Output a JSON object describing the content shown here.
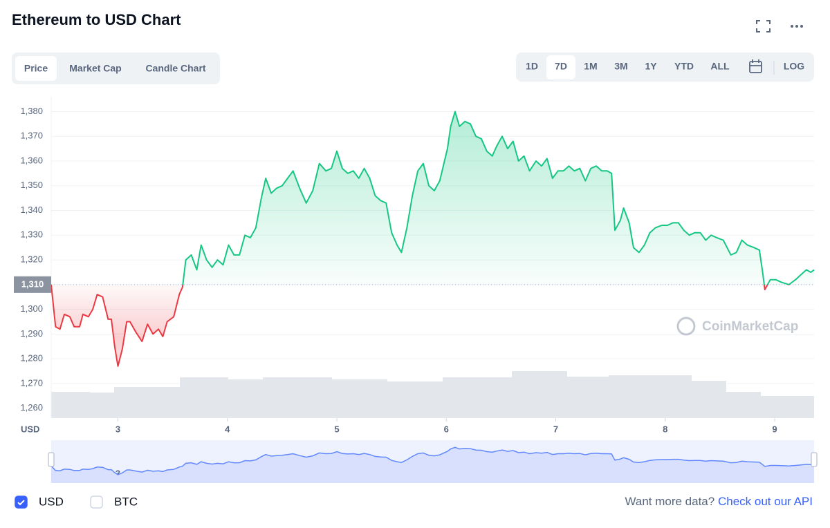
{
  "header": {
    "title": "Ethereum to USD Chart"
  },
  "tabs": [
    "Price",
    "Market Cap",
    "Candle Chart"
  ],
  "active_tab": 0,
  "ranges": [
    "1D",
    "7D",
    "1M",
    "3M",
    "1Y",
    "YTD",
    "ALL"
  ],
  "active_range": 1,
  "log_button": "LOG",
  "chart_data": {
    "type": "line",
    "y_label": "USD",
    "watermark": "CoinMarketCap",
    "up_color": "#16c784",
    "down_color": "#ea3943",
    "reference": {
      "value": 1310,
      "label": "1,310"
    },
    "x": [
      2.39,
      2.43,
      2.47,
      2.51,
      2.56,
      2.6,
      2.65,
      2.68,
      2.73,
      2.77,
      2.81,
      2.86,
      2.91,
      2.94,
      2.97,
      3.0,
      3.04,
      3.08,
      3.11,
      3.16,
      3.22,
      3.27,
      3.32,
      3.37,
      3.41,
      3.45,
      3.51,
      3.56,
      3.59,
      3.62,
      3.67,
      3.72,
      3.76,
      3.81,
      3.86,
      3.91,
      3.96,
      4.01,
      4.06,
      4.11,
      4.16,
      4.21,
      4.26,
      4.31,
      4.35,
      4.4,
      4.45,
      4.5,
      4.55,
      4.6,
      4.66,
      4.72,
      4.78,
      4.84,
      4.9,
      4.95,
      5.0,
      5.05,
      5.1,
      5.15,
      5.2,
      5.25,
      5.3,
      5.35,
      5.4,
      5.45,
      5.5,
      5.55,
      5.59,
      5.64,
      5.69,
      5.74,
      5.79,
      5.84,
      5.89,
      5.94,
      6.01,
      6.04,
      6.08,
      6.12,
      6.17,
      6.22,
      6.27,
      6.32,
      6.37,
      6.42,
      6.46,
      6.51,
      6.56,
      6.61,
      6.66,
      6.71,
      6.76,
      6.82,
      6.87,
      6.92,
      6.97,
      7.02,
      7.07,
      7.12,
      7.17,
      7.22,
      7.27,
      7.32,
      7.37,
      7.42,
      7.47,
      7.51,
      7.54,
      7.59,
      7.62,
      7.67,
      7.71,
      7.76,
      7.81,
      7.86,
      7.91,
      7.97,
      8.02,
      8.07,
      8.12,
      8.17,
      8.22,
      8.27,
      8.32,
      8.37,
      8.42,
      8.47,
      8.53,
      8.6,
      8.65,
      8.7,
      8.75,
      8.81,
      8.86,
      8.89,
      8.91,
      8.96,
      9.01,
      9.06,
      9.13,
      9.19,
      9.24,
      9.29,
      9.33,
      9.36
    ],
    "values": [
      1310,
      1293,
      1292,
      1298,
      1297,
      1293,
      1293,
      1298,
      1297,
      1300,
      1306,
      1305,
      1296,
      1296,
      1285,
      1277,
      1284,
      1295,
      1295,
      1291,
      1287,
      1294,
      1290,
      1292,
      1289,
      1295,
      1297,
      1306,
      1309,
      1320,
      1322,
      1316,
      1326,
      1320,
      1317,
      1320,
      1318,
      1326,
      1322,
      1322,
      1330,
      1329,
      1333,
      1345,
      1353,
      1347,
      1349,
      1350,
      1353,
      1356,
      1349,
      1343,
      1348,
      1359,
      1356,
      1357,
      1364,
      1357,
      1355,
      1356,
      1353,
      1357,
      1353,
      1346,
      1344,
      1343,
      1331,
      1326,
      1323,
      1333,
      1346,
      1356,
      1359,
      1350,
      1348,
      1352,
      1365,
      1374,
      1380,
      1374,
      1376,
      1375,
      1370,
      1369,
      1364,
      1362,
      1366,
      1370,
      1365,
      1368,
      1360,
      1362,
      1356,
      1360,
      1358,
      1361,
      1353,
      1356,
      1356,
      1358,
      1356,
      1357,
      1352,
      1357,
      1358,
      1356,
      1356,
      1355,
      1332,
      1336,
      1341,
      1335,
      1325,
      1323,
      1326,
      1331,
      1333,
      1334,
      1334,
      1335,
      1335,
      1332,
      1330,
      1331,
      1331,
      1328,
      1330,
      1329,
      1328,
      1322,
      1323,
      1328,
      1326,
      1325,
      1324,
      1315,
      1308,
      1312,
      1312,
      1311,
      1310,
      1312,
      1314,
      1316,
      1315,
      1316
    ],
    "xlim": [
      2.39,
      9.36
    ],
    "xticks": [
      3,
      4,
      5,
      6,
      7,
      8,
      9
    ],
    "ylim": [
      1256,
      1386
    ],
    "yticks": [
      {
        "value": 1260,
        "label": "1,260"
      },
      {
        "value": 1270,
        "label": "1,270"
      },
      {
        "value": 1280,
        "label": "1,280"
      },
      {
        "value": 1290,
        "label": "1,290"
      },
      {
        "value": 1300,
        "label": "1,300"
      },
      {
        "value": 1310,
        "label": "1,310"
      },
      {
        "value": 1320,
        "label": "1,320"
      },
      {
        "value": 1330,
        "label": "1,330"
      },
      {
        "value": 1340,
        "label": "1,340"
      },
      {
        "value": 1350,
        "label": "1,350"
      },
      {
        "value": 1360,
        "label": "1,360"
      },
      {
        "value": 1370,
        "label": "1,370"
      },
      {
        "value": 1380,
        "label": "1,380"
      }
    ],
    "grid": true
  },
  "footer": {
    "currencies": [
      {
        "label": "USD",
        "checked": true
      },
      {
        "label": "BTC",
        "checked": false
      }
    ],
    "prompt": "Want more data?",
    "link": "Check out our API"
  }
}
